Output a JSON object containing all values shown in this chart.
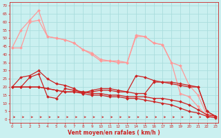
{
  "background_color": "#caf0f0",
  "grid_color": "#aadddd",
  "x_label": "Vent moyen/en rafales ( km/h )",
  "x_ticks": [
    0,
    1,
    2,
    3,
    4,
    5,
    6,
    7,
    8,
    9,
    10,
    11,
    12,
    13,
    14,
    15,
    16,
    17,
    18,
    19,
    20,
    21,
    22,
    23
  ],
  "y_ticks": [
    0,
    5,
    10,
    15,
    20,
    25,
    30,
    35,
    40,
    45,
    50,
    55,
    60,
    65,
    70
  ],
  "ylim": [
    -2,
    72
  ],
  "xlim": [
    -0.3,
    23.3
  ],
  "series": [
    {
      "x": [
        0,
        1,
        2,
        3,
        4,
        5,
        6,
        7,
        8,
        9,
        10,
        11,
        12,
        13,
        14,
        15,
        16,
        17,
        18,
        19,
        20,
        21,
        22,
        23
      ],
      "y": [
        44,
        55,
        61,
        67,
        51,
        50,
        49,
        47,
        43,
        41,
        37,
        36,
        36,
        35,
        52,
        51,
        47,
        46,
        35,
        33,
        21,
        15,
        3,
        2
      ],
      "color": "#ff9999",
      "lw": 0.9,
      "marker": "D",
      "ms": 2.0
    },
    {
      "x": [
        0,
        1,
        2,
        3,
        4,
        5,
        6,
        7,
        8,
        9,
        10,
        11,
        12,
        13,
        14,
        15,
        16,
        17,
        18,
        19,
        20,
        21,
        22,
        23
      ],
      "y": [
        44,
        44,
        60,
        61,
        51,
        50,
        49,
        47,
        43,
        40,
        36,
        36,
        35,
        35,
        51,
        51,
        47,
        46,
        35,
        16,
        14,
        8,
        2,
        2
      ],
      "color": "#ff9999",
      "lw": 0.9,
      "marker": "D",
      "ms": 2.0
    },
    {
      "x": [
        0,
        1,
        2,
        3,
        4,
        5,
        6,
        7,
        8,
        9,
        10,
        11,
        12,
        13,
        14,
        15,
        16,
        17,
        18,
        19,
        20,
        21,
        22,
        23
      ],
      "y": [
        20,
        26,
        27,
        30,
        25,
        22,
        21,
        19,
        16,
        18,
        19,
        19,
        18,
        17,
        27,
        26,
        24,
        23,
        23,
        22,
        21,
        20,
        5,
        2
      ],
      "color": "#cc2222",
      "lw": 0.9,
      "marker": "D",
      "ms": 2.0
    },
    {
      "x": [
        0,
        1,
        2,
        3,
        4,
        5,
        6,
        7,
        8,
        9,
        10,
        11,
        12,
        13,
        14,
        15,
        16,
        17,
        18,
        19,
        20,
        21,
        22,
        23
      ],
      "y": [
        20,
        20,
        26,
        28,
        14,
        13,
        19,
        18,
        17,
        17,
        18,
        18,
        17,
        17,
        16,
        16,
        23,
        23,
        22,
        21,
        20,
        20,
        5,
        2
      ],
      "color": "#cc2222",
      "lw": 0.9,
      "marker": "D",
      "ms": 2.0
    },
    {
      "x": [
        0,
        1,
        2,
        3,
        4,
        5,
        6,
        7,
        8,
        9,
        10,
        11,
        12,
        13,
        14,
        15,
        16,
        17,
        18,
        19,
        20,
        21,
        22,
        23
      ],
      "y": [
        20,
        20,
        20,
        20,
        19,
        18,
        17,
        17,
        17,
        16,
        16,
        15,
        15,
        14,
        14,
        14,
        13,
        13,
        12,
        11,
        9,
        6,
        3,
        2
      ],
      "color": "#cc2222",
      "lw": 0.9,
      "marker": "D",
      "ms": 2.0
    },
    {
      "x": [
        0,
        1,
        2,
        3,
        4,
        5,
        6,
        7,
        8,
        9,
        10,
        11,
        12,
        13,
        14,
        15,
        16,
        17,
        18,
        19,
        20,
        21,
        22,
        23
      ],
      "y": [
        20,
        20,
        20,
        20,
        19,
        18,
        17,
        17,
        16,
        15,
        15,
        14,
        14,
        13,
        13,
        12,
        11,
        10,
        9,
        7,
        5,
        4,
        2,
        1
      ],
      "color": "#cc2222",
      "lw": 0.9,
      "marker": "D",
      "ms": 2.0
    }
  ],
  "arrow_color": "#cc2222",
  "label_color": "#cc2222"
}
